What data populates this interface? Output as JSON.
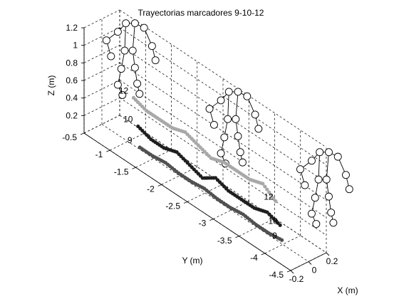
{
  "chart_data": {
    "type": "scatter",
    "subtype": "3d-trajectories",
    "title": "Trayectorias marcadores 9-10-12",
    "xlabel": "X (m)",
    "ylabel": "Y (m)",
    "zlabel": "Z (m)",
    "xlim": [
      -0.2,
      0.2
    ],
    "ylim": [
      -4.5,
      -0.5
    ],
    "zlim": [
      0,
      1.2
    ],
    "x_ticks": [
      "-0.2",
      "0",
      "0.2"
    ],
    "y_ticks": [
      "-0.5",
      "-1",
      "-1.5",
      "-2",
      "-2.5",
      "-3",
      "-3.5",
      "-4",
      "-4.5"
    ],
    "z_ticks": [
      "0.2",
      "0.4",
      "0.6",
      "0.8",
      "1",
      "1.2"
    ],
    "grid": true,
    "marker_labels": [
      "12",
      "10",
      "9"
    ],
    "series": [
      {
        "name": "12",
        "color": "#a8a8a8",
        "points": [
          [
            -0.05,
            -1.2,
            0.6
          ],
          [
            -0.05,
            -1.45,
            0.55
          ],
          [
            -0.05,
            -1.7,
            0.55
          ],
          [
            -0.05,
            -1.95,
            0.55
          ],
          [
            -0.05,
            -2.2,
            0.6
          ],
          [
            -0.05,
            -2.45,
            0.55
          ],
          [
            -0.05,
            -2.7,
            0.5
          ],
          [
            -0.05,
            -2.95,
            0.55
          ],
          [
            -0.05,
            -3.2,
            0.55
          ],
          [
            -0.05,
            -3.45,
            0.55
          ],
          [
            -0.05,
            -3.7,
            0.6
          ],
          [
            -0.05,
            -3.95,
            0.5
          ]
        ]
      },
      {
        "name": "10",
        "color": "#1e1e1e",
        "points": [
          [
            0.0,
            -1.2,
            0.25
          ],
          [
            0.0,
            -1.45,
            0.2
          ],
          [
            0.0,
            -1.7,
            0.2
          ],
          [
            0.0,
            -1.95,
            0.25
          ],
          [
            0.0,
            -2.2,
            0.2
          ],
          [
            0.0,
            -2.45,
            0.15
          ],
          [
            0.0,
            -2.7,
            0.25
          ],
          [
            0.0,
            -2.95,
            0.2
          ],
          [
            0.0,
            -3.2,
            0.2
          ],
          [
            0.0,
            -3.45,
            0.2
          ],
          [
            0.0,
            -3.7,
            0.25
          ],
          [
            0.0,
            -3.95,
            0.2
          ]
        ]
      },
      {
        "name": "9",
        "color": "#505050",
        "points": [
          [
            0.02,
            -1.2,
            0.0
          ],
          [
            0.02,
            -1.45,
            0.0
          ],
          [
            0.02,
            -1.7,
            0.02
          ],
          [
            0.02,
            -1.95,
            0.0
          ],
          [
            0.02,
            -2.2,
            0.0
          ],
          [
            0.02,
            -2.45,
            0.02
          ],
          [
            0.02,
            -2.7,
            0.0
          ],
          [
            0.02,
            -2.95,
            0.0
          ],
          [
            0.02,
            -3.2,
            0.02
          ],
          [
            0.02,
            -3.45,
            0.0
          ],
          [
            0.02,
            -3.7,
            0.0
          ],
          [
            0.02,
            -3.95,
            0.02
          ]
        ]
      }
    ]
  }
}
